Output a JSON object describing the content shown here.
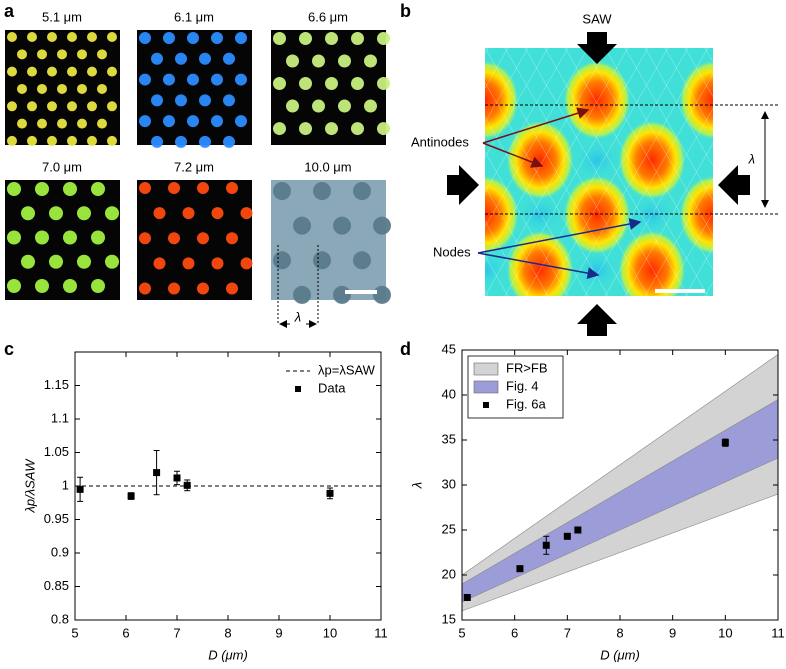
{
  "panels": {
    "a": {
      "label": "a",
      "tiles": [
        "5.1 μm",
        "6.1 μm",
        "6.6 μm",
        "7.0 μm",
        "7.2 μm",
        "10.0 μm"
      ],
      "spacing_label": "λ"
    },
    "b": {
      "label": "b",
      "saw": "SAW",
      "antinodes": "Antinodes",
      "nodes": "Nodes",
      "wavelength": "λ"
    }
  },
  "chart_data": [
    {
      "type": "scatter",
      "panel_label": "c",
      "xlabel": "D (μm)",
      "ylabel": "λp/λSAW",
      "xlim": [
        5,
        11
      ],
      "xticks": [
        5,
        6,
        7,
        8,
        9,
        10,
        11
      ],
      "ylim": [
        0.8,
        1.2
      ],
      "yticks": [
        0.8,
        0.85,
        0.9,
        0.95,
        1,
        1.05,
        1.1,
        1.15
      ],
      "reference_line": {
        "name": "λp=λSAW",
        "value": 1,
        "color": "#000000"
      },
      "bands": [],
      "series": [
        {
          "name": "Data",
          "color": "#000000",
          "x": [
            5.1,
            6.1,
            6.6,
            7.0,
            7.2,
            10.0
          ],
          "values": [
            0.995,
            0.985,
            1.02,
            1.012,
            1.001,
            0.989
          ],
          "errors": [
            0.018,
            0.005,
            0.033,
            0.01,
            0.008,
            0.008
          ]
        }
      ],
      "legend": "upper right",
      "legend_border": false
    },
    {
      "type": "scatter",
      "panel_label": "d",
      "xlabel": "D (μm)",
      "ylabel": "λ",
      "xlim": [
        5,
        11
      ],
      "xticks": [
        5,
        6,
        7,
        8,
        9,
        10,
        11
      ],
      "ylim": [
        15,
        45
      ],
      "yticks": [
        15,
        20,
        25,
        30,
        35,
        40,
        45
      ],
      "bands": [
        {
          "name": "FR>FB",
          "color": "#d3d3d3",
          "x": [
            5,
            11
          ],
          "lower": [
            16,
            29
          ],
          "upper": [
            20,
            44.5
          ]
        },
        {
          "name": "Fig. 4",
          "color": "#9c9cd8",
          "x": [
            5,
            11
          ],
          "lower": [
            17,
            33
          ],
          "upper": [
            19,
            39.5
          ]
        }
      ],
      "series": [
        {
          "name": "Fig. 6a",
          "color": "#000000",
          "x": [
            5.1,
            6.1,
            6.6,
            7.0,
            7.2,
            10.0
          ],
          "values": [
            17.5,
            20.7,
            23.3,
            24.3,
            25.0,
            34.7
          ],
          "errors": [
            0.2,
            0.2,
            1.0,
            0.3,
            0.3,
            0.4
          ]
        }
      ],
      "legend": "upper left",
      "legend_border": true
    }
  ]
}
